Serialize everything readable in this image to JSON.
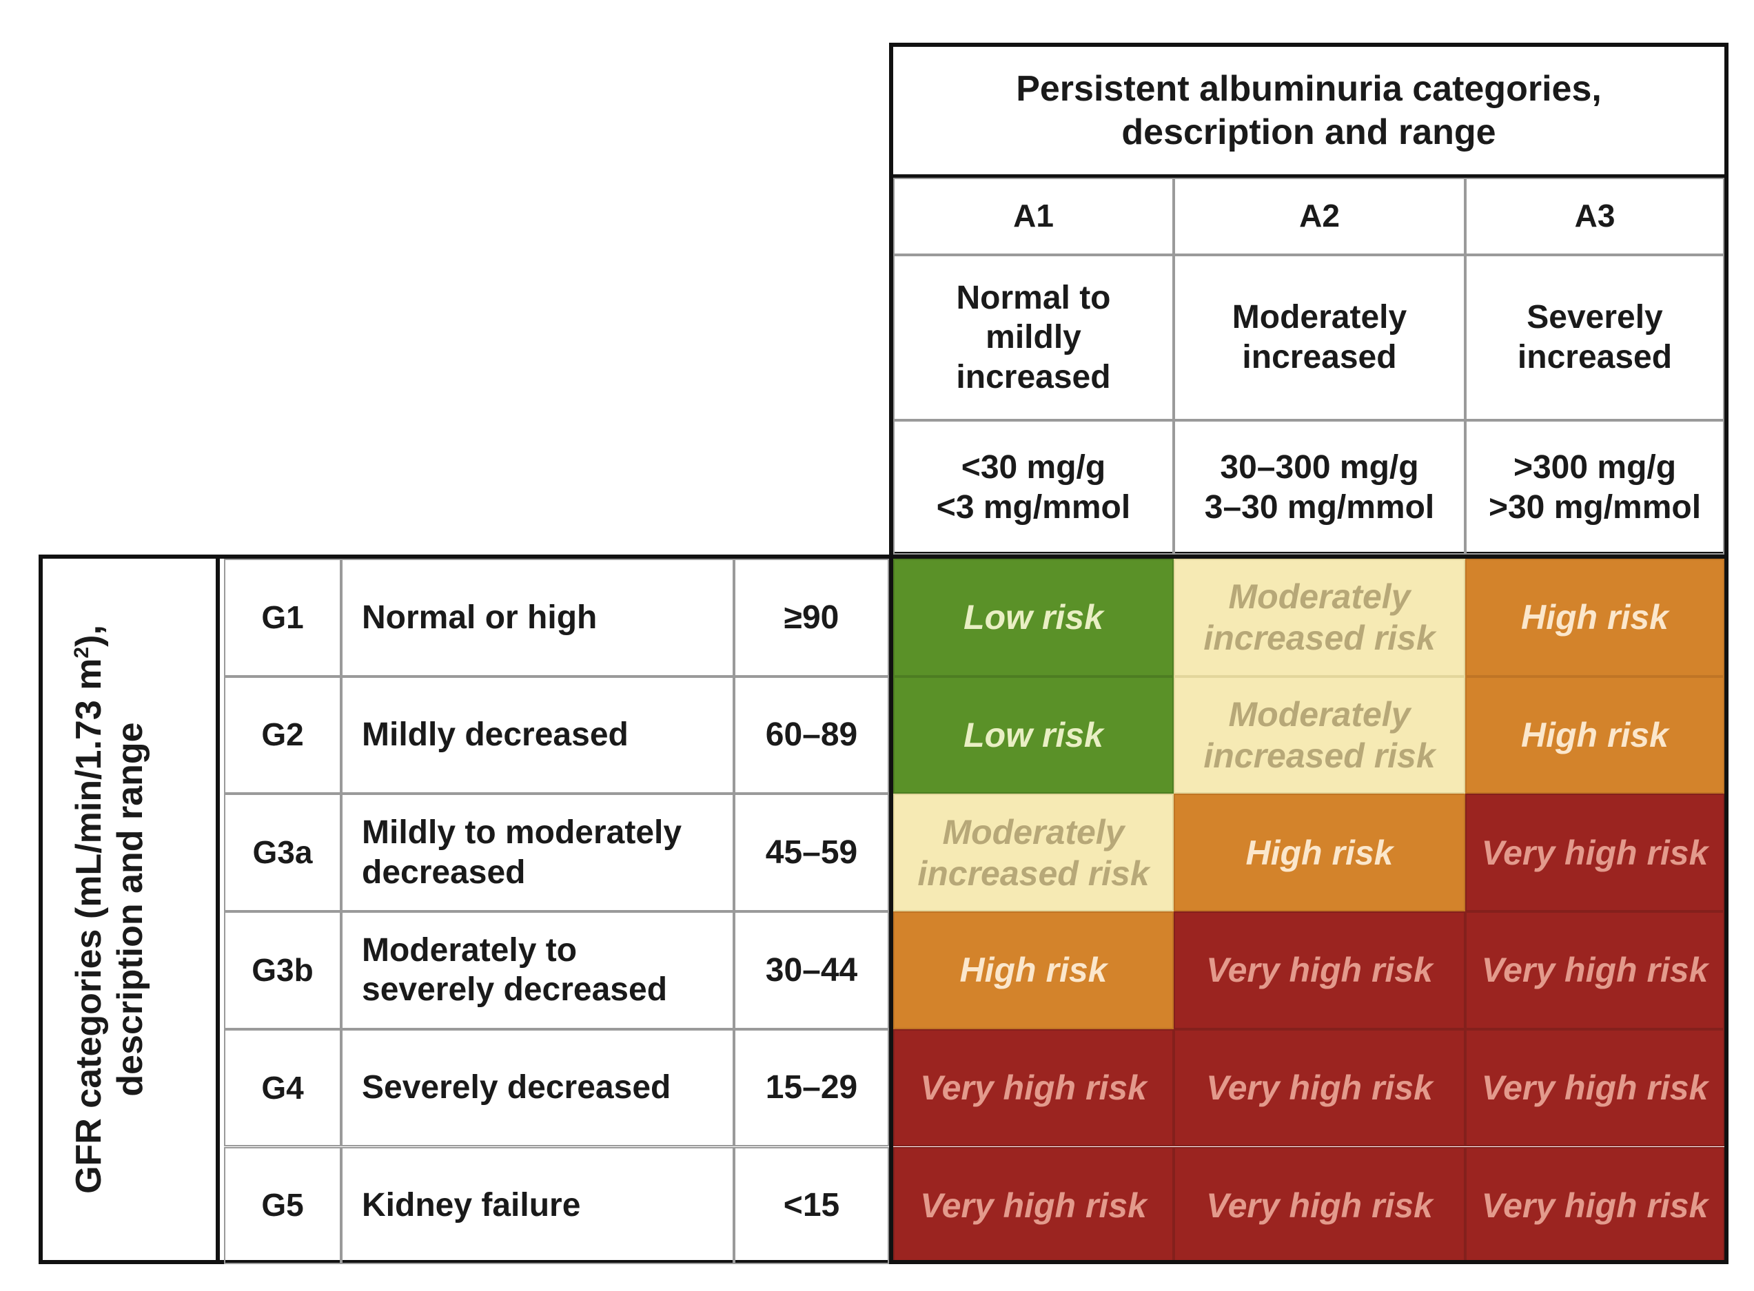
{
  "albuminuria": {
    "title_line1": "Persistent albuminuria categories,",
    "title_line2": "description and range",
    "columns": [
      {
        "code": "A1",
        "desc": [
          "Normal to",
          "mildly",
          "increased"
        ],
        "range": [
          "<30 mg/g",
          "<3 mg/mmol"
        ]
      },
      {
        "code": "A2",
        "desc": [
          "Moderately",
          "increased"
        ],
        "range": [
          "30–300 mg/g",
          "3–30 mg/mmol"
        ]
      },
      {
        "code": "A3",
        "desc": [
          "Severely",
          "increased"
        ],
        "range": [
          ">300 mg/g",
          ">30 mg/mmol"
        ]
      }
    ]
  },
  "gfr": {
    "axis_line1": "GFR categories (mL/min/1.73 m",
    "axis_sup": "2",
    "axis_line1_end": "),",
    "axis_line2": "description and range",
    "rows": [
      {
        "code": "G1",
        "desc": [
          "Normal or high"
        ],
        "range": "≥90",
        "risks": [
          [
            "Low risk"
          ],
          [
            "Moderately",
            "increased risk"
          ],
          [
            "High risk"
          ]
        ]
      },
      {
        "code": "G2",
        "desc": [
          "Mildly decreased"
        ],
        "range": "60–89",
        "risks": [
          [
            "Low risk"
          ],
          [
            "Moderately",
            "increased risk"
          ],
          [
            "High risk"
          ]
        ]
      },
      {
        "code": "G3a",
        "desc": [
          "Mildly to moderately",
          "decreased"
        ],
        "range": "45–59",
        "risks": [
          [
            "Moderately",
            "increased risk"
          ],
          [
            "High risk"
          ],
          [
            "Very high risk"
          ]
        ]
      },
      {
        "code": "G3b",
        "desc": [
          "Moderately to",
          "severely decreased"
        ],
        "range": "30–44",
        "risks": [
          [
            "High risk"
          ],
          [
            "Very high risk"
          ],
          [
            "Very high risk"
          ]
        ]
      },
      {
        "code": "G4",
        "desc": [
          "Severely decreased"
        ],
        "range": "15–29",
        "risks": [
          [
            "Very high risk"
          ],
          [
            "Very high risk"
          ],
          [
            "Very high risk"
          ]
        ]
      },
      {
        "code": "G5",
        "desc": [
          "Kidney failure"
        ],
        "range": "<15",
        "risks": [
          [
            "Very high risk"
          ],
          [
            "Very high risk"
          ],
          [
            "Very high risk"
          ]
        ]
      }
    ]
  },
  "risk_levels": {
    "G1": [
      "low",
      "moderate",
      "high"
    ],
    "G2": [
      "low",
      "moderate",
      "high"
    ],
    "G3a": [
      "moderate",
      "high",
      "very-high"
    ],
    "G3b": [
      "high",
      "very-high",
      "very-high"
    ],
    "G4": [
      "very-high",
      "very-high",
      "very-high"
    ],
    "G5": [
      "very-high",
      "very-high",
      "very-high"
    ]
  },
  "colors": {
    "low": "#5a9128",
    "moderate": "#f6eab4",
    "high": "#d3832b",
    "very_high": "#9b2420"
  }
}
